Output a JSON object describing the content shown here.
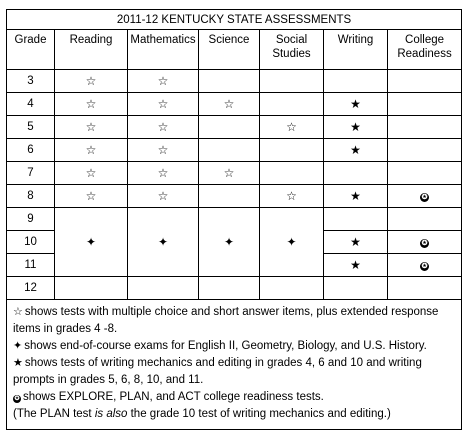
{
  "title": "2011-12 KENTUCKY STATE ASSESSMENTS",
  "headers": {
    "grade": "Grade",
    "reading": "Reading",
    "mathematics": "Mathematics",
    "science": "Science",
    "social_1": "Social",
    "social_2": "Studies",
    "writing": "Writing",
    "college_1": "College",
    "college_2": "Readiness"
  },
  "symbols": {
    "outline_star": "☆",
    "four_point_star": "✦",
    "filled_star": "★",
    "circle_star": "✪"
  },
  "grades": [
    "3",
    "4",
    "5",
    "6",
    "7",
    "8",
    "9",
    "10",
    "11",
    "12"
  ],
  "notes": {
    "n1_text": "shows tests with multiple choice and short answer items, plus extended response items in grades 4 -8.",
    "n2_text": "shows end-of-course exams for English II, Geometry, Biology, and U.S. History.",
    "n3_text": "shows tests of writing mechanics and editing in grades 4, 6 and 10 and writing prompts in grades 5, 6, 8, 10, and 11.",
    "n4_text": "shows EXPLORE, PLAN, and ACT college readiness tests.",
    "n5_a": "(The PLAN test ",
    "n5_b": "is also",
    "n5_c": " the grade 10 test of writing mechanics and editing.)"
  }
}
